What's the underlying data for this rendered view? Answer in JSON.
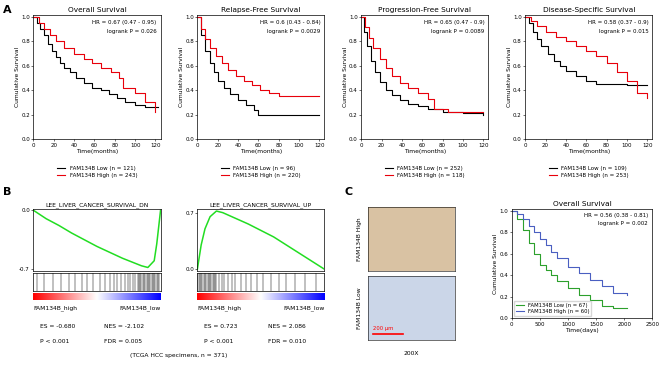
{
  "panel_labels": [
    "A",
    "B",
    "C"
  ],
  "panel_b_caption": "(TCGA HCC specimens, n = 371)",
  "ihc": {
    "labels": [
      "FAM134B High",
      "FAM134B Low"
    ],
    "scale_bar": "200 μm",
    "magnification": "200X"
  },
  "chart_data": [
    {
      "type": "step",
      "title": "Overall Survival",
      "x_label": "Time(months)",
      "y_label": "Cumulative Survival",
      "xlim": [
        0,
        125
      ],
      "xticks": [
        0,
        20,
        40,
        60,
        80,
        100,
        120
      ],
      "ylim": [
        0,
        1.02
      ],
      "yticks": [
        {
          "value": 0,
          "label": "0.0"
        },
        0.2,
        0.4,
        0.6,
        0.8,
        {
          "value": 1,
          "label": "1.0"
        }
      ],
      "annotations": [
        "HR = 0.67 (0.47 - 0.95)",
        "logrank P = 0.026"
      ],
      "legend": "bottom",
      "series": [
        {
          "name": "FAM134B Low (n = 121)",
          "color": "#000000",
          "x": [
            0,
            3,
            6,
            10,
            14,
            18,
            22,
            26,
            30,
            36,
            42,
            50,
            58,
            66,
            74,
            82,
            90,
            100,
            110,
            122
          ],
          "values": [
            1.0,
            0.95,
            0.9,
            0.85,
            0.78,
            0.72,
            0.67,
            0.62,
            0.58,
            0.55,
            0.5,
            0.46,
            0.42,
            0.4,
            0.37,
            0.34,
            0.3,
            0.28,
            0.26,
            0.26
          ]
        },
        {
          "name": "FAM134B High (n = 243)",
          "color": "#e8000b",
          "x": [
            0,
            5,
            10,
            16,
            22,
            30,
            40,
            50,
            58,
            66,
            76,
            84,
            88,
            100,
            110,
            120
          ],
          "values": [
            1.0,
            0.95,
            0.9,
            0.85,
            0.8,
            0.75,
            0.7,
            0.66,
            0.62,
            0.58,
            0.55,
            0.5,
            0.42,
            0.38,
            0.3,
            0.22
          ]
        }
      ]
    },
    {
      "type": "step",
      "title": "Relapse-Free Survival",
      "x_label": "Time(months)",
      "y_label": "Cumulative Survival",
      "xlim": [
        0,
        125
      ],
      "xticks": [
        0,
        20,
        40,
        60,
        80,
        100,
        120
      ],
      "ylim": [
        0,
        1.02
      ],
      "yticks": [
        {
          "value": 0,
          "label": "0.0"
        },
        0.2,
        0.4,
        0.6,
        0.8,
        {
          "value": 1,
          "label": "1.0"
        }
      ],
      "annotations": [
        "HR = 0.6 (0.43 - 0.84)",
        "logrank P = 0.0029"
      ],
      "legend": "bottom",
      "series": [
        {
          "name": "FAM134B Low (n = 96)",
          "color": "#000000",
          "x": [
            0,
            4,
            8,
            12,
            16,
            20,
            26,
            32,
            40,
            48,
            56,
            60,
            120
          ],
          "values": [
            1.0,
            0.85,
            0.72,
            0.62,
            0.55,
            0.48,
            0.42,
            0.37,
            0.32,
            0.28,
            0.24,
            0.2,
            0.2
          ]
        },
        {
          "name": "FAM134B High (n = 220)",
          "color": "#e8000b",
          "x": [
            0,
            4,
            8,
            12,
            18,
            24,
            30,
            38,
            46,
            54,
            62,
            70,
            80,
            120
          ],
          "values": [
            1.0,
            0.9,
            0.82,
            0.75,
            0.68,
            0.62,
            0.57,
            0.52,
            0.48,
            0.44,
            0.4,
            0.38,
            0.35,
            0.35
          ]
        }
      ]
    },
    {
      "type": "step",
      "title": "Progression-Free Survival",
      "x_label": "Time(months)",
      "y_label": "Cumulative Survival",
      "xlim": [
        0,
        125
      ],
      "xticks": [
        0,
        20,
        40,
        60,
        80,
        100,
        120
      ],
      "ylim": [
        0,
        1.02
      ],
      "yticks": [
        {
          "value": 0,
          "label": "0.0"
        },
        0.2,
        0.4,
        0.6,
        0.8,
        {
          "value": 1,
          "label": "1.0"
        }
      ],
      "annotations": [
        "HR = 0.65 (0.47 - 0.9)",
        "logrank P = 0.0089"
      ],
      "legend": "bottom",
      "series": [
        {
          "name": "FAM134B Low (n = 252)",
          "color": "#000000",
          "x": [
            0,
            3,
            6,
            10,
            14,
            18,
            24,
            30,
            38,
            46,
            56,
            66,
            80,
            100,
            120
          ],
          "values": [
            1.0,
            0.88,
            0.76,
            0.64,
            0.55,
            0.47,
            0.4,
            0.36,
            0.32,
            0.29,
            0.27,
            0.25,
            0.22,
            0.21,
            0.2
          ]
        },
        {
          "name": "FAM134B High (n = 118)",
          "color": "#e8000b",
          "x": [
            0,
            4,
            8,
            12,
            18,
            24,
            30,
            38,
            46,
            56,
            66,
            72,
            85,
            120
          ],
          "values": [
            1.0,
            0.92,
            0.83,
            0.75,
            0.66,
            0.58,
            0.52,
            0.46,
            0.42,
            0.38,
            0.33,
            0.25,
            0.22,
            0.22
          ]
        }
      ]
    },
    {
      "type": "step",
      "title": "Disease-Specific Survival",
      "x_label": "Time(months)",
      "y_label": "Cumulative Survival",
      "xlim": [
        0,
        125
      ],
      "xticks": [
        0,
        20,
        40,
        60,
        80,
        100,
        120
      ],
      "ylim": [
        0,
        1.02
      ],
      "yticks": [
        {
          "value": 0,
          "label": "0.0"
        },
        0.2,
        0.4,
        0.6,
        0.8,
        {
          "value": 1,
          "label": "1.0"
        }
      ],
      "annotations": [
        "HR = 0.58 (0.37 - 0.9)",
        "logrank P = 0.015"
      ],
      "legend": "bottom",
      "series": [
        {
          "name": "FAM134B Low (n = 109)",
          "color": "#000000",
          "x": [
            0,
            4,
            8,
            12,
            16,
            22,
            28,
            34,
            40,
            50,
            60,
            70,
            100,
            120
          ],
          "values": [
            1.0,
            0.95,
            0.88,
            0.82,
            0.76,
            0.7,
            0.64,
            0.6,
            0.56,
            0.52,
            0.48,
            0.45,
            0.44,
            0.44
          ]
        },
        {
          "name": "FAM134B High (n = 253)",
          "color": "#e8000b",
          "x": [
            0,
            6,
            12,
            20,
            30,
            40,
            50,
            60,
            70,
            80,
            90,
            100,
            110,
            120
          ],
          "values": [
            1.0,
            0.97,
            0.93,
            0.88,
            0.84,
            0.8,
            0.76,
            0.72,
            0.68,
            0.62,
            0.55,
            0.48,
            0.38,
            0.34
          ]
        }
      ]
    },
    {
      "type": "enrichment",
      "title": "LEE_LIVER_CANCER_SURVIVAL_DN",
      "color": "#22dd22",
      "xlim": [
        0,
        100
      ],
      "ylim": [
        -0.72,
        0.02
      ],
      "yticks": [
        {
          "value": 0,
          "label": "0.0"
        },
        -0.7
      ],
      "tick_labels": "y",
      "x": [
        0,
        5,
        10,
        20,
        30,
        40,
        50,
        60,
        70,
        80,
        85,
        90,
        95,
        97,
        100
      ],
      "values": [
        0,
        -0.05,
        -0.1,
        -0.18,
        -0.27,
        -0.35,
        -0.43,
        -0.5,
        -0.57,
        -0.63,
        -0.66,
        -0.68,
        -0.6,
        -0.4,
        0
      ],
      "hits": [
        3,
        8,
        15,
        22,
        28,
        33,
        38,
        42,
        47,
        52,
        56,
        60,
        63,
        66,
        69,
        72,
        74,
        76,
        78,
        80,
        82,
        83,
        84,
        85,
        86,
        87,
        88,
        89,
        90,
        91,
        92,
        93,
        94,
        95,
        96,
        97,
        98,
        99
      ],
      "left_label": "FAM134B_high",
      "right_label": "FAM134B_low",
      "annotations": [
        "ES = -0.680",
        "NES = -2.102",
        "P < 0.001",
        "FDR = 0.005"
      ]
    },
    {
      "type": "enrichment",
      "title": "LEE_LIVER_CANCER_SURVIVAL_UP",
      "color": "#22dd22",
      "xlim": [
        0,
        100
      ],
      "ylim": [
        -0.02,
        0.75
      ],
      "yticks": [
        {
          "value": 0,
          "label": "0.0"
        },
        0.7
      ],
      "tick_labels": "y",
      "x": [
        0,
        3,
        6,
        10,
        15,
        20,
        30,
        40,
        50,
        60,
        70,
        80,
        90,
        100
      ],
      "values": [
        0,
        0.3,
        0.5,
        0.65,
        0.72,
        0.7,
        0.63,
        0.56,
        0.48,
        0.4,
        0.3,
        0.2,
        0.1,
        0
      ],
      "hits": [
        0,
        1,
        2,
        3,
        4,
        5,
        6,
        7,
        8,
        9,
        10,
        11,
        12,
        13,
        14,
        15,
        17,
        19,
        21,
        24,
        27,
        30,
        34,
        38,
        42,
        47,
        52,
        58,
        64,
        70,
        77,
        85,
        93
      ],
      "left_label": "FAM134B_high",
      "right_label": "FAM134B_low",
      "annotations": [
        "ES = 0.723",
        "NES = 2.086",
        "P < 0.001",
        "FDR = 0.010"
      ]
    },
    {
      "type": "step",
      "title": "Overall Survival",
      "x_label": "Time(days)",
      "y_label": "Cumulative Survival",
      "xlim": [
        0,
        2500
      ],
      "xticks": [
        0,
        500,
        1000,
        1500,
        2000,
        2500
      ],
      "ylim": [
        0,
        1.02
      ],
      "yticks": [
        {
          "value": 0,
          "label": "0.0"
        },
        0.2,
        0.4,
        0.6,
        0.8,
        {
          "value": 1,
          "label": "1.0"
        }
      ],
      "annotations": [
        "HR = 0.56 (0.38 - 0.81)",
        "logrank P = 0.002"
      ],
      "legend": "lower left",
      "series": [
        {
          "name": "FAM134B Low (n = 67)",
          "color": "#2ca02c",
          "x": [
            0,
            100,
            200,
            300,
            400,
            500,
            600,
            700,
            800,
            1000,
            1200,
            1400,
            1600,
            1800,
            2050
          ],
          "values": [
            1.0,
            0.92,
            0.82,
            0.7,
            0.6,
            0.5,
            0.45,
            0.4,
            0.35,
            0.28,
            0.22,
            0.17,
            0.12,
            0.1,
            0.1
          ]
        },
        {
          "name": "FAM134B High (n = 60)",
          "color": "#4a5fc1",
          "x": [
            0,
            100,
            200,
            300,
            400,
            500,
            600,
            700,
            800,
            1000,
            1200,
            1400,
            1600,
            1800,
            2050
          ],
          "values": [
            1.0,
            0.97,
            0.92,
            0.86,
            0.8,
            0.74,
            0.68,
            0.62,
            0.56,
            0.48,
            0.42,
            0.36,
            0.3,
            0.24,
            0.22
          ]
        }
      ]
    }
  ]
}
